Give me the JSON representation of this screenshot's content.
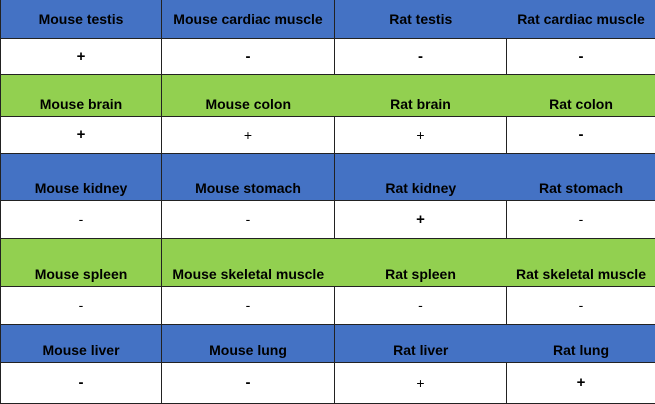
{
  "colors": {
    "blue": "#4472C4",
    "green": "#92D050",
    "white": "#FFFFFF",
    "border": "#222222"
  },
  "rows": [
    {
      "color": "blue",
      "tissues": [
        "Mouse testis",
        "Mouse cardiac muscle",
        "Rat testis",
        "Rat cardiac muscle"
      ],
      "values": [
        "+",
        "-",
        "-",
        "-"
      ]
    },
    {
      "color": "green",
      "tissues": [
        "Mouse brain",
        "Mouse colon",
        "Rat brain",
        "Rat colon"
      ],
      "values": [
        "+",
        "+",
        "+",
        "-"
      ]
    },
    {
      "color": "blue",
      "tissues": [
        "Mouse kidney",
        "Mouse stomach",
        "Rat kidney",
        "Rat stomach"
      ],
      "values": [
        "-",
        "-",
        "+",
        "-"
      ]
    },
    {
      "color": "green",
      "tissues": [
        "Mouse spleen",
        "Mouse skeletal muscle",
        "Rat spleen",
        "Rat skeletal muscle"
      ],
      "values": [
        "-",
        "-",
        "-",
        "-"
      ]
    },
    {
      "color": "blue",
      "tissues": [
        "Mouse liver",
        "Mouse lung",
        "Rat liver",
        "Rat lung"
      ],
      "values": [
        "-",
        "-",
        "+",
        "+"
      ]
    }
  ]
}
